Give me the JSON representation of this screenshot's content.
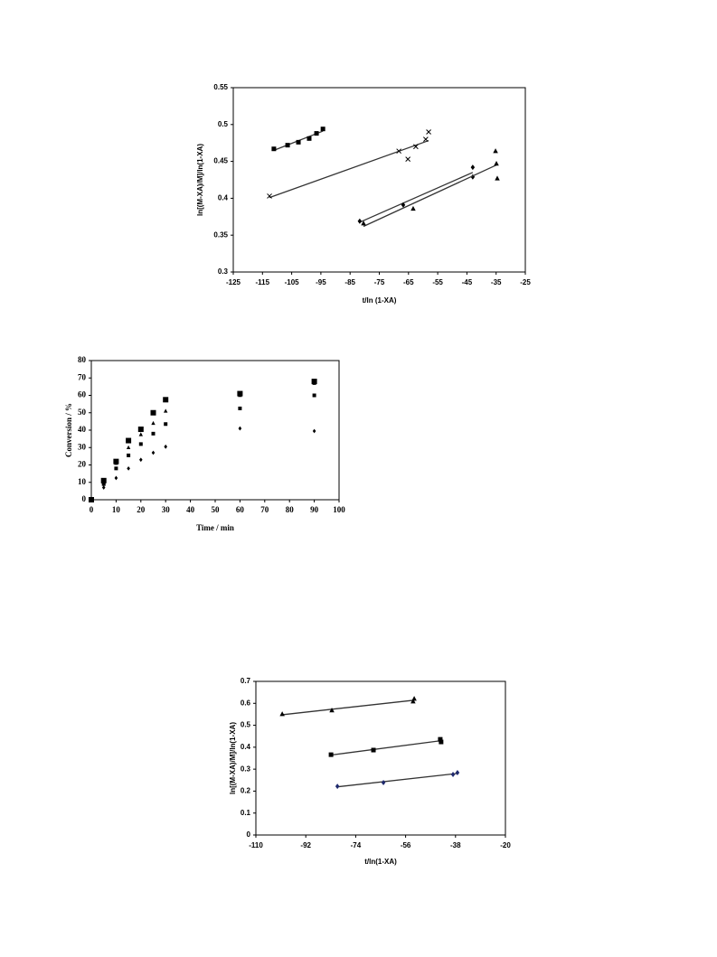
{
  "chart_data": [
    {
      "type": "scatter",
      "x_label": "t/ln (1-XA)",
      "y_label": "ln[(M-XA)/M]/ln(1-XA)",
      "xlim": [
        -125,
        -25
      ],
      "xticks": [
        -125,
        -115,
        -105,
        -95,
        -85,
        -75,
        -65,
        -55,
        -45,
        -35,
        -25
      ],
      "ylim": [
        0.3,
        0.55
      ],
      "yticks": [
        0.3,
        0.35,
        0.4,
        0.45,
        0.5,
        0.55
      ],
      "trendline": true,
      "series": [
        {
          "marker": "square",
          "color": "#000000",
          "x": [
            -111.1,
            -106.4,
            -102.7,
            -99,
            -96.5,
            -94.3
          ],
          "values": [
            0.467,
            0.472,
            0.476,
            0.481,
            0.488,
            0.494
          ]
        },
        {
          "marker": "cross",
          "color": "#000000",
          "x": [
            -112.6,
            -68.3,
            -65.2,
            -62.5,
            -59.1,
            -58.1
          ],
          "values": [
            0.403,
            0.464,
            0.453,
            0.47,
            0.48,
            0.49
          ]
        },
        {
          "marker": "diamond",
          "color": "#000000",
          "x": [
            -81.7,
            -66.8,
            -43,
            -43
          ],
          "values": [
            0.369,
            0.391,
            0.442,
            0.429
          ]
        },
        {
          "marker": "triangle",
          "color": "#000000",
          "x": [
            -80.4,
            -63.4,
            -35.2,
            -34.9,
            -34.6
          ],
          "values": [
            0.366,
            0.386,
            0.464,
            0.447,
            0.427
          ]
        }
      ]
    },
    {
      "type": "scatter",
      "x_label": "Time / min",
      "y_label": "Conversion / %",
      "xlim": [
        0,
        100
      ],
      "xticks": [
        0,
        10,
        20,
        30,
        40,
        50,
        60,
        70,
        80,
        90,
        100
      ],
      "ylim": [
        0,
        80
      ],
      "yticks": [
        0,
        10,
        20,
        30,
        40,
        50,
        60,
        70,
        80
      ],
      "trendline": false,
      "x": [
        0,
        5,
        10,
        15,
        20,
        25,
        30,
        60,
        90
      ],
      "series": [
        {
          "marker": "square",
          "marker_size": 6,
          "color": "#000000",
          "values": [
            0,
            11,
            22,
            34,
            40.5,
            50,
            57.5,
            61,
            68
          ]
        },
        {
          "marker": "triangle",
          "marker_size": 4,
          "color": "#000000",
          "values": [
            0,
            10,
            21,
            30,
            37.5,
            44,
            51,
            60,
            67
          ]
        },
        {
          "marker": "square",
          "marker_size": 4,
          "color": "#000000",
          "values": [
            0,
            9,
            18,
            25.5,
            32,
            38,
            43.5,
            52.5,
            60
          ]
        },
        {
          "marker": "diamond",
          "marker_size": 4,
          "color": "#000000",
          "values": [
            0,
            7,
            12.5,
            18,
            23,
            27,
            30.5,
            41,
            39.5
          ]
        }
      ]
    },
    {
      "type": "scatter",
      "x_label": "t/ln(1-XA)",
      "y_label": "ln[(M-XA)/M]/ln(1-XA)",
      "xlim": [
        -110,
        -20
      ],
      "xticks": [
        -110,
        -92,
        -74,
        -56,
        -38,
        -20
      ],
      "ylim": [
        0,
        0.7
      ],
      "yticks": [
        0,
        0.1,
        0.2,
        0.3,
        0.4,
        0.5,
        0.6,
        0.7
      ],
      "trendline": true,
      "series": [
        {
          "marker": "triangle",
          "color": "#000000",
          "x": [
            -100.5,
            -82.6,
            -53.3,
            -52.9
          ],
          "values": [
            0.551,
            0.568,
            0.609,
            0.621
          ]
        },
        {
          "marker": "square",
          "color": "#000000",
          "x": [
            -82.9,
            -67.6,
            -43.5,
            -43.2
          ],
          "values": [
            0.366,
            0.387,
            0.436,
            0.424
          ]
        },
        {
          "marker": "diamond",
          "color": "#1f2a6e",
          "x": [
            -80.6,
            -64,
            -38.9,
            -37.3
          ],
          "values": [
            0.222,
            0.239,
            0.276,
            0.284
          ]
        }
      ]
    }
  ]
}
